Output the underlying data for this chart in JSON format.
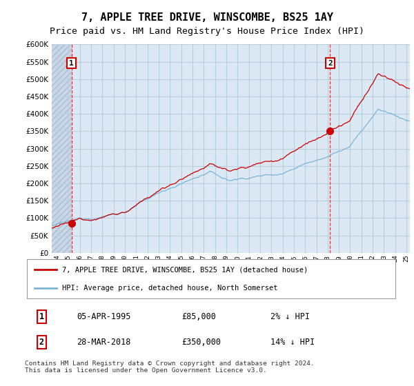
{
  "title": "7, APPLE TREE DRIVE, WINSCOMBE, BS25 1AY",
  "subtitle": "Price paid vs. HM Land Registry's House Price Index (HPI)",
  "ylim": [
    0,
    600000
  ],
  "yticks": [
    0,
    50000,
    100000,
    150000,
    200000,
    250000,
    300000,
    350000,
    400000,
    450000,
    500000,
    550000,
    600000
  ],
  "xlim_start": 1993.5,
  "xlim_end": 2025.3,
  "plot_bg_color": "#dce9f5",
  "hatch_bg_color": "#c8d8e8",
  "grid_color": "#b8cfe0",
  "hpi_color": "#7ab4d8",
  "price_color": "#cc0000",
  "marker1_x": 1995.25,
  "marker1_y": 85000,
  "marker2_x": 2018.22,
  "marker2_y": 350000,
  "legend_label1": "7, APPLE TREE DRIVE, WINSCOMBE, BS25 1AY (detached house)",
  "legend_label2": "HPI: Average price, detached house, North Somerset",
  "table_row1": [
    "1",
    "05-APR-1995",
    "£85,000",
    "2% ↓ HPI"
  ],
  "table_row2": [
    "2",
    "28-MAR-2018",
    "£350,000",
    "14% ↓ HPI"
  ],
  "footer": "Contains HM Land Registry data © Crown copyright and database right 2024.\nThis data is licensed under the Open Government Licence v3.0.",
  "title_fontsize": 11,
  "subtitle_fontsize": 9.5
}
